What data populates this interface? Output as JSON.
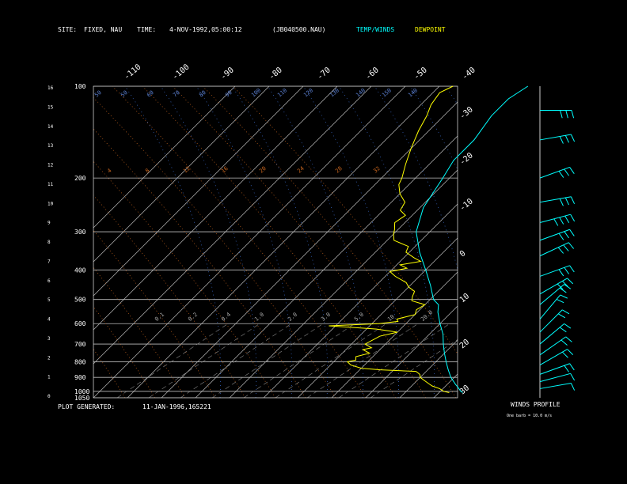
{
  "header": {
    "site_label": "SITE:",
    "site_value": "FIXED, NAU",
    "time_label": "TIME:",
    "time_value": "4-NOV-1992,05:00:12",
    "file_value": "(JB040500.NAU)",
    "temp_legend": "TEMP/WINDS",
    "dew_legend": "DEWPOINT",
    "temp_color": "#00ffff",
    "dew_color": "#ffff00"
  },
  "footer": {
    "generated_label": "PLOT GENERATED:",
    "generated_value": "11-JAN-1996,165221",
    "winds_title": "WINDS PROFILE",
    "barb_note": "One barb = 10.0 m/s"
  },
  "chart_data": {
    "type": "line",
    "pressure_ticks": [
      100,
      200,
      300,
      400,
      500,
      600,
      700,
      800,
      900,
      1000,
      1050
    ],
    "height_ticks": [
      0,
      1,
      2,
      3,
      4,
      5,
      6,
      7,
      8,
      9,
      10,
      11,
      12,
      13,
      14,
      15,
      16
    ],
    "temp_ticks_top": [
      -110,
      -100,
      -90,
      -80,
      -70,
      -60,
      -50,
      -40
    ],
    "temp_ticks_right": [
      -30,
      -20,
      -10,
      0,
      10,
      20,
      30
    ],
    "mixing_ratio_labels": [
      "0.1",
      "0.2",
      "0.4",
      "1.0",
      "2.0",
      "3.0",
      "5.0",
      "10",
      "20.0"
    ],
    "dry_adiabat_labels_top": [
      "50",
      "50",
      "60",
      "70",
      "80",
      "90",
      "100",
      "110",
      "120",
      "130",
      "140",
      "150",
      "140"
    ],
    "moist_adiabat_labels": [
      "4",
      "8",
      "12",
      "16",
      "20",
      "24",
      "28",
      "32"
    ],
    "series": [
      {
        "name": "TEMP/WINDS",
        "color": "#00ffff",
        "points": [
          [
            1010,
            7.0
          ],
          [
            1000,
            6.0
          ],
          [
            970,
            4.0
          ],
          [
            950,
            2.5
          ],
          [
            900,
            -1.0
          ],
          [
            850,
            -4.0
          ],
          [
            800,
            -7.0
          ],
          [
            750,
            -10.0
          ],
          [
            700,
            -13.0
          ],
          [
            650,
            -16.0
          ],
          [
            600,
            -20.0
          ],
          [
            550,
            -24.0
          ],
          [
            520,
            -26.0
          ],
          [
            500,
            -29.0
          ],
          [
            450,
            -34.0
          ],
          [
            400,
            -40.0
          ],
          [
            350,
            -47.0
          ],
          [
            300,
            -54.0
          ],
          [
            250,
            -59.0
          ],
          [
            200,
            -62.0
          ],
          [
            175,
            -64.0
          ],
          [
            150,
            -64.0
          ],
          [
            125,
            -66.0
          ],
          [
            110,
            -66.0
          ],
          [
            100,
            -64.0
          ]
        ]
      },
      {
        "name": "DEWPOINT",
        "color": "#ffff00",
        "points": [
          [
            1010,
            3.0
          ],
          [
            1000,
            1.0
          ],
          [
            980,
            -1.0
          ],
          [
            960,
            -4.0
          ],
          [
            940,
            -6.0
          ],
          [
            920,
            -8.0
          ],
          [
            900,
            -10.0
          ],
          [
            880,
            -11.0
          ],
          [
            860,
            -13.0
          ],
          [
            850,
            -24.0
          ],
          [
            840,
            -30.0
          ],
          [
            820,
            -34.0
          ],
          [
            800,
            -36.0
          ],
          [
            790,
            -34.0
          ],
          [
            770,
            -35.0
          ],
          [
            750,
            -32.0
          ],
          [
            730,
            -35.0
          ],
          [
            720,
            -33.0
          ],
          [
            700,
            -36.0
          ],
          [
            680,
            -35.0
          ],
          [
            660,
            -34.0
          ],
          [
            640,
            -30.0
          ],
          [
            625,
            -37.0
          ],
          [
            610,
            -52.0
          ],
          [
            600,
            -38.0
          ],
          [
            590,
            -33.0
          ],
          [
            580,
            -34.0
          ],
          [
            560,
            -30.0
          ],
          [
            540,
            -31.0
          ],
          [
            520,
            -30.0
          ],
          [
            505,
            -35.0
          ],
          [
            490,
            -36.0
          ],
          [
            470,
            -37.0
          ],
          [
            455,
            -40.0
          ],
          [
            440,
            -42.0
          ],
          [
            420,
            -47.0
          ],
          [
            405,
            -50.0
          ],
          [
            395,
            -46.0
          ],
          [
            385,
            -49.0
          ],
          [
            375,
            -44.0
          ],
          [
            365,
            -47.0
          ],
          [
            350,
            -51.0
          ],
          [
            335,
            -52.0
          ],
          [
            320,
            -58.0
          ],
          [
            305,
            -60.0
          ],
          [
            295,
            -61.0
          ],
          [
            280,
            -63.0
          ],
          [
            265,
            -62.0
          ],
          [
            255,
            -65.0
          ],
          [
            240,
            -66.0
          ],
          [
            225,
            -70.0
          ],
          [
            210,
            -73.0
          ],
          [
            200,
            -74.0
          ],
          [
            180,
            -77.0
          ],
          [
            160,
            -80.0
          ],
          [
            140,
            -83.0
          ],
          [
            125,
            -85.0
          ],
          [
            115,
            -87.0
          ],
          [
            105,
            -88.0
          ],
          [
            100,
            -86.0
          ]
        ]
      }
    ],
    "winds": [
      {
        "p": 120,
        "dir": 270,
        "spd": 25
      },
      {
        "p": 150,
        "dir": 260,
        "spd": 30
      },
      {
        "p": 200,
        "dir": 250,
        "spd": 30
      },
      {
        "p": 240,
        "dir": 260,
        "spd": 30
      },
      {
        "p": 280,
        "dir": 255,
        "spd": 35
      },
      {
        "p": 320,
        "dir": 250,
        "spd": 30
      },
      {
        "p": 360,
        "dir": 245,
        "spd": 30
      },
      {
        "p": 420,
        "dir": 250,
        "spd": 25
      },
      {
        "p": 480,
        "dir": 240,
        "spd": 25
      },
      {
        "p": 520,
        "dir": 230,
        "spd": 20
      },
      {
        "p": 580,
        "dir": 220,
        "spd": 20
      },
      {
        "p": 640,
        "dir": 225,
        "spd": 20
      },
      {
        "p": 700,
        "dir": 230,
        "spd": 15
      },
      {
        "p": 760,
        "dir": 235,
        "spd": 15
      },
      {
        "p": 820,
        "dir": 240,
        "spd": 15
      },
      {
        "p": 880,
        "dir": 250,
        "spd": 15
      },
      {
        "p": 930,
        "dir": 255,
        "spd": 10
      },
      {
        "p": 980,
        "dir": 260,
        "spd": 10
      }
    ]
  }
}
